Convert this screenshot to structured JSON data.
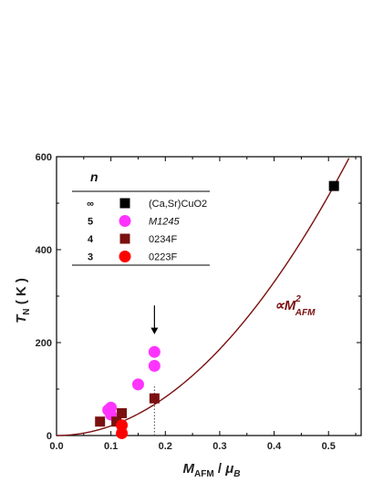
{
  "chart_data": {
    "type": "scatter",
    "xlabel": "M_AFM / μ_B",
    "ylabel": "T_N (K)",
    "xlim": [
      0.0,
      0.56
    ],
    "ylim": [
      0,
      600
    ],
    "x_ticks": [
      "0.0",
      "0.1",
      "0.2",
      "0.3",
      "0.4",
      "0.5"
    ],
    "y_ticks": [
      "0",
      "200",
      "400",
      "600"
    ],
    "legend": {
      "header": "n",
      "placement": "top-left",
      "entries": [
        {
          "n": "∞",
          "label": "(Ca,Sr)CuO2",
          "marker": "square",
          "color": "#000000"
        },
        {
          "n": "5",
          "label": "M1245",
          "marker": "circle",
          "color": "#ff33ff"
        },
        {
          "n": "4",
          "label": "0234F",
          "marker": "square",
          "color": "#7a1010"
        },
        {
          "n": "3",
          "label": "0223F",
          "marker": "circle",
          "color": "#ff0000"
        }
      ]
    },
    "series": [
      {
        "name": "(Ca,Sr)CuO2",
        "marker": "square",
        "color": "#000000",
        "points": [
          {
            "x": 0.51,
            "y": 537
          }
        ]
      },
      {
        "name": "M1245",
        "marker": "circle",
        "color": "#ff33ff",
        "points": [
          {
            "x": 0.095,
            "y": 55
          },
          {
            "x": 0.1,
            "y": 60
          },
          {
            "x": 0.1,
            "y": 45
          },
          {
            "x": 0.15,
            "y": 110
          },
          {
            "x": 0.18,
            "y": 150
          },
          {
            "x": 0.18,
            "y": 180
          }
        ]
      },
      {
        "name": "0234F",
        "marker": "square",
        "color": "#7a1010",
        "points": [
          {
            "x": 0.08,
            "y": 30
          },
          {
            "x": 0.11,
            "y": 30
          },
          {
            "x": 0.12,
            "y": 48
          },
          {
            "x": 0.18,
            "y": 80
          }
        ]
      },
      {
        "name": "0223F",
        "marker": "circle",
        "color": "#ff0000",
        "points": [
          {
            "x": 0.12,
            "y": 22
          },
          {
            "x": 0.12,
            "y": 5
          }
        ]
      }
    ],
    "fit_curve": {
      "type": "quadratic",
      "coefficient": 2065,
      "color": "#7a1010"
    },
    "annotation": {
      "text": "∝M²AFM"
    },
    "marker_line": {
      "x": 0.18,
      "style": "dotted",
      "arrow": "down"
    }
  }
}
